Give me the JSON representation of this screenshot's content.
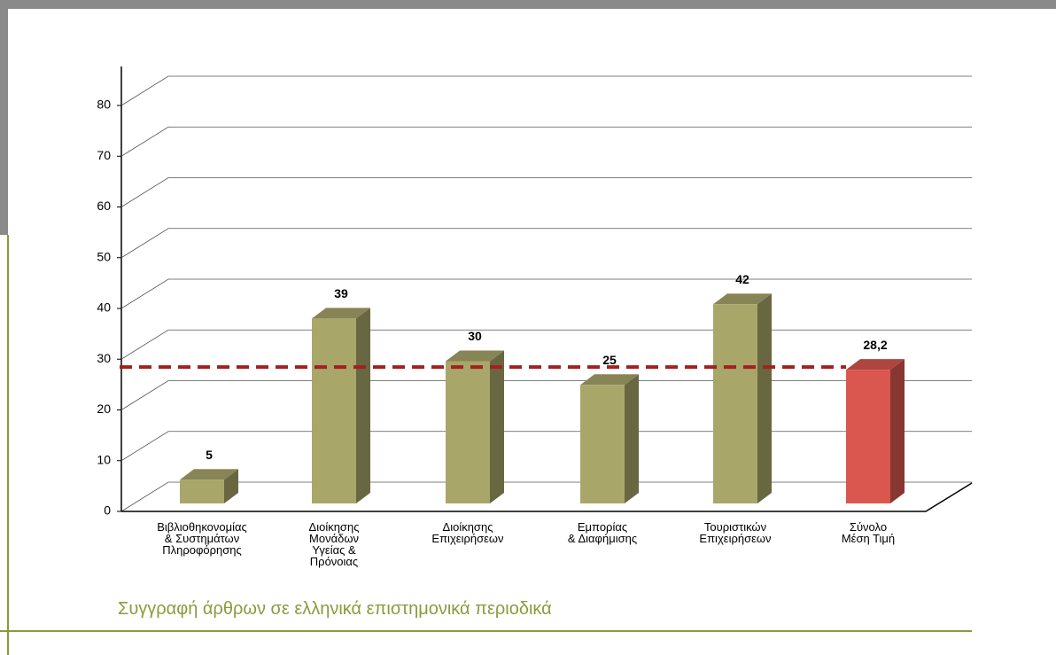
{
  "chart_data": {
    "type": "bar3d",
    "title": "Συγγραφή άρθρων σε ελληνικά επιστημονικά περιοδικά",
    "categories": [
      "Βιβλιοθηκονομίας\n& Συστημάτων\nΠληροφόρησης",
      "Διοίκησης\nΜονάδων\nΥγείας &\nΠρόνοιας",
      "Διοίκησης\nΕπιχειρήσεων",
      "Εμπορίας\n& Διαφήμισης",
      "Τουριστικών\nΕπιχειρήσεων",
      "Σύνολο\nΜέση Τιμή"
    ],
    "values": [
      5,
      39,
      30,
      25,
      42,
      28.2
    ],
    "value_labels": [
      "5",
      "39",
      "30",
      "25",
      "42",
      "28,2"
    ],
    "colors": [
      "#a9a66a",
      "#a9a66a",
      "#a9a66a",
      "#a9a66a",
      "#a9a66a",
      "#d9574f"
    ],
    "ylim": [
      0,
      80
    ],
    "yticks": [
      0,
      10,
      20,
      30,
      40,
      50,
      60,
      70,
      80
    ],
    "grid": true
  }
}
